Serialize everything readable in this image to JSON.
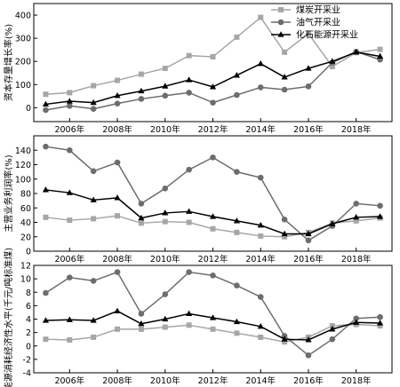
{
  "chart_data": {
    "legend": {
      "placement": "top-right",
      "entries": [
        {
          "label": "煤炭开采业",
          "series": "coal"
        },
        {
          "label": "油气开采业",
          "series": "oil_gas"
        },
        {
          "label": "化石能源开采业",
          "series": "fossil"
        }
      ]
    },
    "series_styles": {
      "coal": {
        "color": "#a6a6a6",
        "marker": "square"
      },
      "oil_gas": {
        "color": "#6d6d6d",
        "marker": "circle"
      },
      "fossil": {
        "color": "#000000",
        "marker": "triangle"
      }
    },
    "x_ticks": [
      "2006年",
      "2008年",
      "2010年",
      "2012年",
      "2014年",
      "2016年",
      "2018年"
    ],
    "x_tick_values": [
      2006,
      2008,
      2010,
      2012,
      2014,
      2016,
      2018
    ],
    "xlim": [
      2004.5,
      2019.5
    ],
    "panels": [
      {
        "type": "line",
        "ylabel": "资本存量增长率(%)",
        "ylim": [
          -60,
          450
        ],
        "y_ticks": [
          0,
          100,
          200,
          300,
          400
        ],
        "x": [
          2005,
          2006,
          2007,
          2008,
          2009,
          2010,
          2011,
          2012,
          2013,
          2014,
          2015,
          2016,
          2017,
          2018,
          2019
        ],
        "series": [
          {
            "key": "coal",
            "values": [
              58,
              65,
              95,
              118,
              145,
              170,
              225,
              220,
              305,
              390,
              240,
              320,
              178,
              238,
              252
            ]
          },
          {
            "key": "oil_gas",
            "values": [
              -10,
              8,
              -5,
              18,
              38,
              52,
              65,
              22,
              55,
              88,
              78,
              92,
              195,
              242,
              208
            ]
          },
          {
            "key": "fossil",
            "values": [
              15,
              28,
              22,
              52,
              72,
              93,
              120,
              90,
              140,
              190,
              132,
              170,
              200,
              240,
              222
            ]
          }
        ]
      },
      {
        "type": "line",
        "ylabel": "主营业务利润率(%)",
        "ylim": [
          0,
          160
        ],
        "y_ticks": [
          0,
          20,
          40,
          60,
          80,
          100,
          120,
          140
        ],
        "x": [
          2005,
          2006,
          2007,
          2008,
          2009,
          2010,
          2011,
          2012,
          2013,
          2014,
          2015,
          2016,
          2017,
          2018,
          2019
        ],
        "series": [
          {
            "key": "coal",
            "values": [
              47,
              43,
              45,
              49,
              39,
              41,
              40,
              31,
              26,
              21,
              20,
              26,
              39,
              42,
              46
            ]
          },
          {
            "key": "oil_gas",
            "values": [
              145,
              140,
              111,
              123,
              66,
              87,
              113,
              130,
              110,
              102,
              44,
              15,
              35,
              66,
              63
            ]
          },
          {
            "key": "fossil",
            "values": [
              85,
              81,
              71,
              74,
              46,
              53,
              55,
              48,
              42,
              36,
              24,
              24,
              38,
              47,
              48
            ]
          }
        ]
      },
      {
        "type": "line",
        "ylabel": "能源消耗经济性水平(千元/吨标准煤)",
        "ylim": [
          -4,
          12
        ],
        "y_ticks": [
          -4,
          -2,
          0,
          2,
          4,
          6,
          8,
          10,
          12
        ],
        "x": [
          2005,
          2006,
          2007,
          2008,
          2009,
          2010,
          2011,
          2012,
          2013,
          2014,
          2015,
          2016,
          2017,
          2018,
          2019
        ],
        "series": [
          {
            "key": "coal",
            "values": [
              1.0,
              0.9,
              1.3,
              2.5,
              2.5,
              2.8,
              3.1,
              2.5,
              1.9,
              1.3,
              0.6,
              1.3,
              3.0,
              3.2,
              3.0
            ]
          },
          {
            "key": "oil_gas",
            "values": [
              7.9,
              10.2,
              9.7,
              11.0,
              4.8,
              7.7,
              11.0,
              10.5,
              9.0,
              7.3,
              1.5,
              -1.4,
              1.0,
              4.1,
              4.3
            ]
          },
          {
            "key": "fossil",
            "values": [
              3.8,
              3.9,
              3.8,
              5.2,
              3.3,
              4.0,
              4.8,
              4.2,
              3.6,
              2.9,
              1.0,
              0.9,
              2.5,
              3.5,
              3.4
            ]
          }
        ]
      }
    ]
  }
}
